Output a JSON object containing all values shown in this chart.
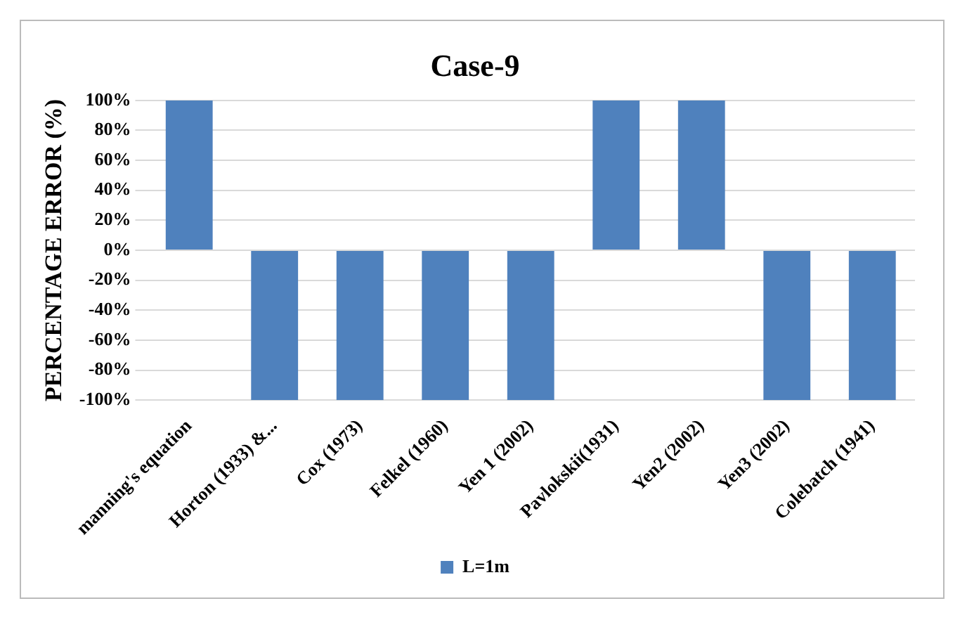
{
  "chart_data": {
    "type": "bar",
    "title": "Case-9",
    "ylabel": "PERCENTAGE ERROR (%)",
    "categories": [
      "manning's equation",
      "Horton (1933) &...",
      "Cox (1973)",
      "Felkel (1960)",
      "Yen 1 (2002)",
      "Pavlokskii(1931)",
      "Yen2 (2002)",
      "Yen3 (2002)",
      "Colebatch (1941)"
    ],
    "series": [
      {
        "name": "L=1m",
        "color": "#4f81bd",
        "values": [
          100,
          -100,
          -100,
          -100,
          -100,
          100,
          100,
          -100,
          -100
        ]
      }
    ],
    "ylim": [
      -100,
      100
    ],
    "yticks": [
      {
        "value": -100,
        "label": "-100%"
      },
      {
        "value": -80,
        "label": "-80%"
      },
      {
        "value": -60,
        "label": "-60%"
      },
      {
        "value": -40,
        "label": "-40%"
      },
      {
        "value": -20,
        "label": "-20%"
      },
      {
        "value": 0,
        "label": "0%"
      },
      {
        "value": 20,
        "label": "20%"
      },
      {
        "value": 40,
        "label": "40%"
      },
      {
        "value": 60,
        "label": "60%"
      },
      {
        "value": 80,
        "label": "80%"
      },
      {
        "value": 100,
        "label": "100%"
      }
    ],
    "grid": "y",
    "legend": "bottom"
  }
}
